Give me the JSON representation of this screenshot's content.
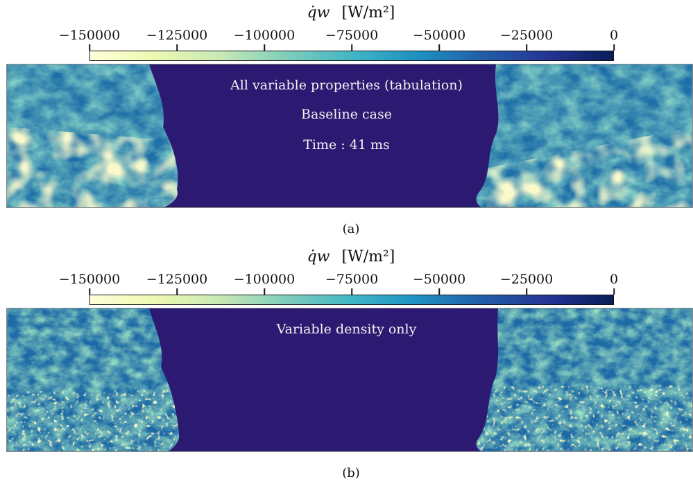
{
  "figure": {
    "panels": [
      {
        "colorbar": {
          "symbol": "q̇w",
          "unit": "[W/m²]",
          "ticks": [
            "−150000",
            "−125000",
            "−100000",
            "−75000",
            "−50000",
            "−25000",
            "0"
          ]
        },
        "annotations": [
          "All variable properties (tabulation)",
          "Baseline case",
          "Time : 41 ms"
        ],
        "sublabel": "(a)"
      },
      {
        "colorbar": {
          "symbol": "q̇w",
          "unit": "[W/m²]",
          "ticks": [
            "−150000",
            "−125000",
            "−100000",
            "−75000",
            "−50000",
            "−25000",
            "0"
          ]
        },
        "annotations": [
          "Variable density only"
        ],
        "sublabel": "(b)"
      }
    ]
  },
  "colors": {
    "background_field": "#2c1a72",
    "colormap": [
      "#ffffd9",
      "#edf8b1",
      "#c7e9b4",
      "#7fcdbb",
      "#41b6c4",
      "#1d91c0",
      "#225ea8",
      "#253494",
      "#081d58"
    ]
  }
}
